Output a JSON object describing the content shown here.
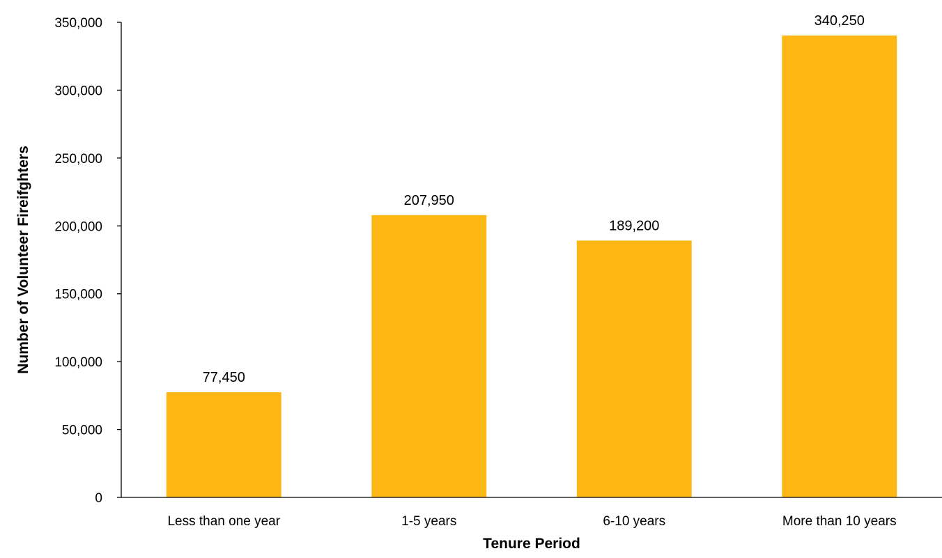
{
  "chart_data": {
    "type": "bar",
    "title": "",
    "xlabel": "Tenure Period",
    "ylabel": "Number of Volunteer Fireifghters",
    "categories": [
      "Less than one year",
      "1-5 years",
      "6-10 years",
      "More than 10 years"
    ],
    "values": [
      77450,
      207950,
      189200,
      340250
    ],
    "data_labels": [
      "77,450",
      "207,950",
      "189,200",
      "340,250"
    ],
    "ylim": [
      0,
      350000
    ],
    "y_ticks": [
      0,
      50000,
      100000,
      150000,
      200000,
      250000,
      300000,
      350000
    ],
    "y_tick_labels": [
      "0",
      "50,000",
      "100,000",
      "150,000",
      "200,000",
      "250,000",
      "300,000",
      "350,000"
    ],
    "grid": false,
    "legend": "none",
    "bar_color": "#FDB714"
  }
}
